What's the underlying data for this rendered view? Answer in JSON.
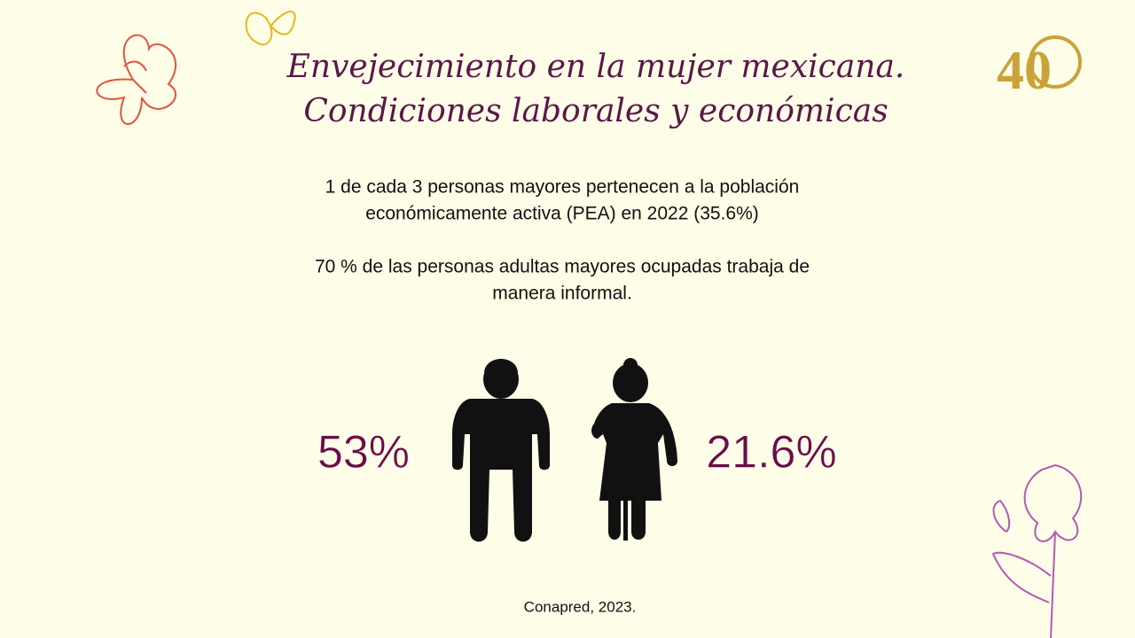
{
  "header": {
    "title_lines": [
      "Envejecimiento en la mujer mexicana.",
      "Condiciones laborales y económicas"
    ],
    "logo": "40"
  },
  "body": {
    "paragraphs": [
      [
        "1 de cada 3 personas mayores pertenecen a la población",
        "económicamente activa (PEA) en 2022 (35.6%)"
      ],
      [
        "70 % de las personas adultas mayores ocupadas trabaja de",
        "manera informal."
      ]
    ]
  },
  "stats": [
    {
      "label": "53%"
    },
    {
      "label": "21.6%"
    }
  ],
  "footer": {
    "source": "Conapred, 2023."
  }
}
